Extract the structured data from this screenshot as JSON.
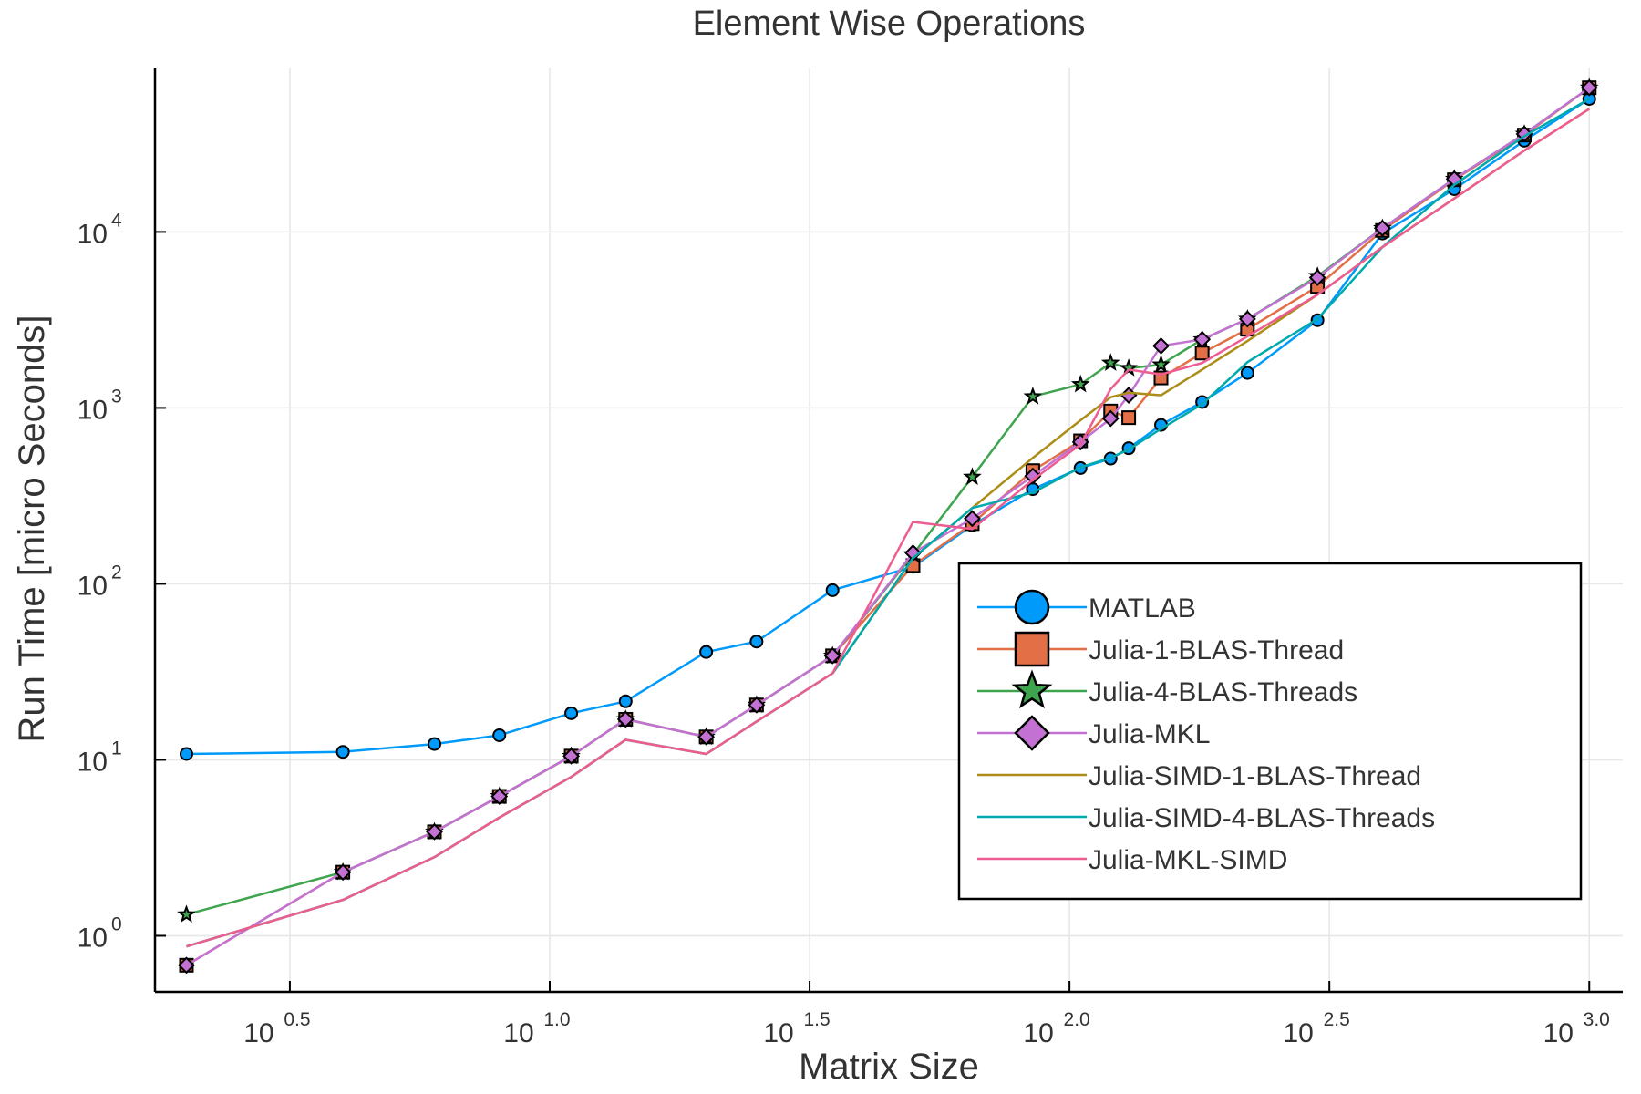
{
  "chart_data": {
    "type": "line",
    "title": "Element Wise Operations",
    "xlabel": "Matrix Size",
    "ylabel": "Run Time  [micro Seconds]",
    "xscale": "log10",
    "yscale": "log10",
    "xlim": [
      1.74,
      1160
    ],
    "ylim": [
      0.48,
      85000
    ],
    "grid": true,
    "legend_position": "right",
    "x_ticks": [
      {
        "base": "10",
        "exp": "0.5",
        "value": 3.1623
      },
      {
        "base": "10",
        "exp": "1.0",
        "value": 10
      },
      {
        "base": "10",
        "exp": "1.5",
        "value": 31.623
      },
      {
        "base": "10",
        "exp": "2.0",
        "value": 100
      },
      {
        "base": "10",
        "exp": "2.5",
        "value": 316.23
      },
      {
        "base": "10",
        "exp": "3.0",
        "value": 1000
      }
    ],
    "y_ticks": [
      {
        "base": "10",
        "exp": "0",
        "value": 1
      },
      {
        "base": "10",
        "exp": "1",
        "value": 10
      },
      {
        "base": "10",
        "exp": "2",
        "value": 100
      },
      {
        "base": "10",
        "exp": "3",
        "value": 1000
      },
      {
        "base": "10",
        "exp": "4",
        "value": 10000
      }
    ],
    "series": [
      {
        "name": "MATLAB",
        "color": "#009AFA",
        "marker": "circle",
        "x": [
          2,
          4,
          6,
          8,
          11,
          14,
          20,
          25,
          35,
          50,
          65,
          85,
          105,
          120,
          130,
          150,
          180,
          220,
          300,
          400,
          550,
          750,
          1000
        ],
        "y": [
          10.8,
          11.1,
          12.3,
          13.8,
          18.4,
          21.5,
          41,
          47,
          92,
          125,
          215,
          345,
          455,
          515,
          590,
          800,
          1080,
          1580,
          3150,
          9800,
          17500,
          33000,
          57000
        ]
      },
      {
        "name": "Julia-1-BLAS-Thread",
        "color": "#E26F46",
        "marker": "square",
        "x": [
          2,
          4,
          6,
          8,
          11,
          14,
          20,
          25,
          35,
          50,
          65,
          85,
          105,
          120,
          130,
          150,
          180,
          220,
          300,
          400,
          550,
          750,
          1000
        ],
        "y": [
          0.68,
          2.3,
          3.9,
          6.2,
          10.5,
          17,
          13.5,
          20.5,
          39,
          127,
          220,
          440,
          650,
          960,
          880,
          1480,
          2050,
          2800,
          4900,
          10200,
          19800,
          35500,
          66000
        ]
      },
      {
        "name": "Julia-4-BLAS-Threads",
        "color": "#3EA44E",
        "marker": "star",
        "x": [
          2,
          4,
          6,
          8,
          11,
          14,
          20,
          25,
          35,
          50,
          65,
          85,
          105,
          120,
          130,
          150,
          180,
          220,
          300,
          400,
          550,
          750,
          1000
        ],
        "y": [
          1.32,
          2.3,
          3.9,
          6.2,
          10.5,
          17,
          13.5,
          20.5,
          39,
          147,
          405,
          1160,
          1360,
          1800,
          1680,
          1760,
          2450,
          3200,
          5600,
          10500,
          20000,
          36000,
          66000
        ]
      },
      {
        "name": "Julia-MKL",
        "color": "#C371D2",
        "marker": "diamond",
        "x": [
          2,
          4,
          6,
          8,
          11,
          14,
          20,
          25,
          35,
          50,
          65,
          85,
          105,
          120,
          130,
          150,
          180,
          220,
          300,
          400,
          550,
          750,
          1000
        ],
        "y": [
          0.68,
          2.3,
          3.9,
          6.2,
          10.5,
          17,
          13.5,
          20.5,
          39,
          150,
          235,
          410,
          640,
          870,
          1180,
          2250,
          2450,
          3200,
          5500,
          10500,
          20000,
          36000,
          66000
        ]
      },
      {
        "name": "Julia-SIMD-1-BLAS-Thread",
        "color": "#AC8D18",
        "marker": "none",
        "x": [
          2,
          4,
          6,
          8,
          11,
          14,
          20,
          25,
          35,
          50,
          65,
          85,
          105,
          120,
          130,
          150,
          180,
          220,
          300,
          400,
          550,
          750,
          1000
        ],
        "y": [
          0.87,
          1.6,
          2.8,
          4.7,
          8.0,
          13,
          10.8,
          16.5,
          31,
          140,
          270,
          520,
          850,
          1150,
          1220,
          1180,
          1650,
          2400,
          4400,
          8200,
          15500,
          29000,
          50000
        ]
      },
      {
        "name": "Julia-SIMD-4-BLAS-Threads",
        "color": "#00A9AD",
        "marker": "none",
        "x": [
          2,
          4,
          6,
          8,
          11,
          14,
          20,
          25,
          35,
          50,
          65,
          85,
          105,
          120,
          130,
          150,
          180,
          220,
          300,
          400,
          550,
          750,
          1000
        ],
        "y": [
          0.87,
          1.6,
          2.8,
          4.7,
          8.0,
          13,
          10.8,
          16.5,
          31,
          140,
          270,
          330,
          460,
          520,
          580,
          760,
          1050,
          1820,
          3200,
          8200,
          18500,
          35000,
          57000
        ]
      },
      {
        "name": "Julia-MKL-SIMD",
        "color": "#ED5D92",
        "marker": "none",
        "x": [
          2,
          4,
          6,
          8,
          11,
          14,
          20,
          25,
          35,
          50,
          65,
          85,
          105,
          120,
          130,
          150,
          180,
          220,
          300,
          400,
          550,
          750,
          1000
        ],
        "y": [
          0.87,
          1.6,
          2.8,
          4.7,
          8.0,
          13,
          10.8,
          16.5,
          31,
          225,
          205,
          390,
          620,
          1280,
          1650,
          1550,
          1800,
          2550,
          4400,
          8200,
          15500,
          29000,
          50000
        ]
      }
    ]
  }
}
